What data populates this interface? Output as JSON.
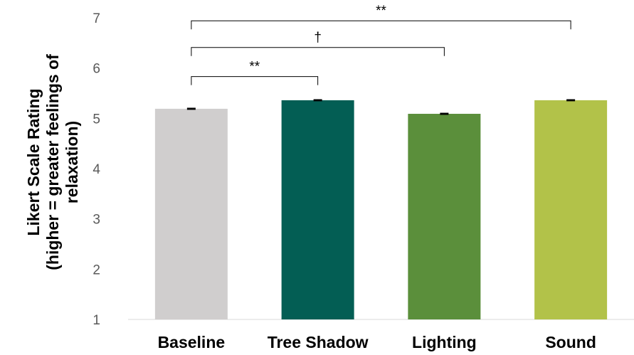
{
  "chart_data": {
    "type": "bar",
    "categories": [
      "Baseline",
      "Tree Shadow",
      "Lighting",
      "Sound"
    ],
    "values": [
      5.19,
      5.36,
      5.09,
      5.36
    ],
    "error": [
      0.01,
      0.01,
      0.01,
      0.01
    ],
    "colors": [
      "#d0cece",
      "#035e54",
      "#5b8f3b",
      "#b2c249"
    ],
    "ylabel_lines": [
      "Likert Scale Rating",
      "(higher = greater feelings of",
      "relaxation)"
    ],
    "xlabel": "",
    "title": "",
    "ylim": [
      1,
      7
    ],
    "yticks": [
      "1",
      "2",
      "3",
      "4",
      "5",
      "6",
      "7"
    ],
    "grid": false,
    "legend": "none",
    "significance": [
      {
        "from": 0,
        "to": 1,
        "label": "**",
        "level": 5.83
      },
      {
        "from": 0,
        "to": 2,
        "label": "†",
        "level": 6.41
      },
      {
        "from": 0,
        "to": 3,
        "label": "**",
        "level": 6.94
      }
    ]
  }
}
